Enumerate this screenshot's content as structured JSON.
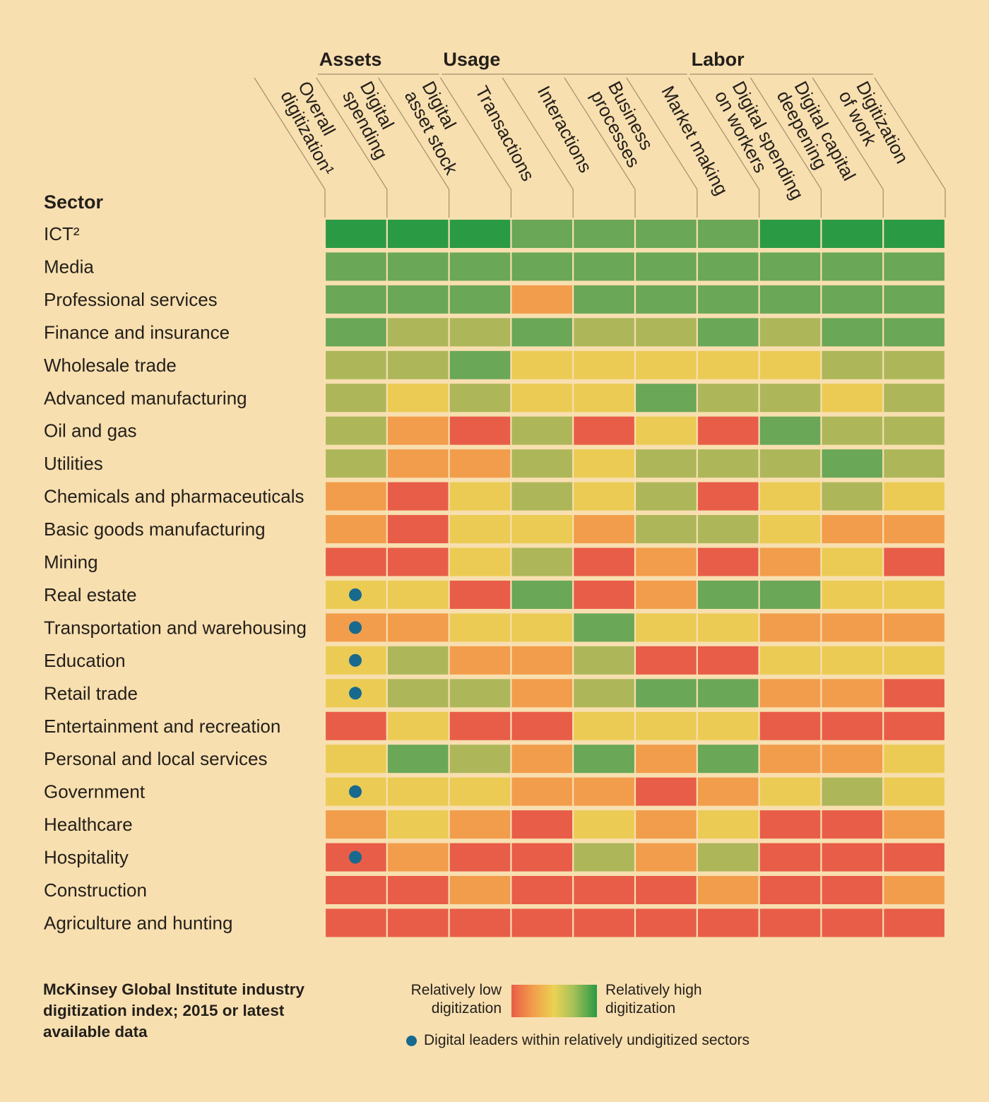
{
  "chart_data": {
    "type": "heatmap",
    "title": "McKinsey Global Institute industry digitization index; 2015 or latest available data",
    "row_header": "Sector",
    "groups": [
      {
        "label": "Assets",
        "columns": [
          1,
          2
        ]
      },
      {
        "label": "Usage",
        "columns": [
          3,
          4,
          5,
          6
        ]
      },
      {
        "label": "Labor",
        "columns": [
          7,
          8,
          9
        ]
      }
    ],
    "columns": [
      [
        "Overall",
        "digitization¹"
      ],
      [
        "Digital",
        "spending"
      ],
      [
        "Digital",
        "asset stock"
      ],
      [
        "Transactions"
      ],
      [
        "Interactions"
      ],
      [
        "Business",
        "processes"
      ],
      [
        "Market making"
      ],
      [
        "Digital spending",
        "on workers"
      ],
      [
        "Digital capital",
        "deepening"
      ],
      [
        "Digitization",
        "of work"
      ]
    ],
    "scale": {
      "levels": [
        0,
        1,
        2,
        3,
        4,
        5
      ],
      "level_meaning": "0 = relatively low digitization, 5 = relatively high digitization",
      "colors": [
        "#e85d48",
        "#f29d4b",
        "#ebcb54",
        "#adb75a",
        "#6aa757",
        "#2a9a45"
      ]
    },
    "rows": [
      {
        "sector": "ICT²",
        "values": [
          5,
          5,
          5,
          4,
          4,
          4,
          4,
          5,
          5,
          5
        ],
        "leader_dot": false
      },
      {
        "sector": "Media",
        "values": [
          4,
          4,
          4,
          4,
          4,
          4,
          4,
          4,
          4,
          4
        ],
        "leader_dot": false
      },
      {
        "sector": "Professional services",
        "values": [
          4,
          4,
          4,
          1,
          4,
          4,
          4,
          4,
          4,
          4
        ],
        "leader_dot": false
      },
      {
        "sector": "Finance and insurance",
        "values": [
          4,
          3,
          3,
          4,
          3,
          3,
          4,
          3,
          4,
          4
        ],
        "leader_dot": false
      },
      {
        "sector": "Wholesale trade",
        "values": [
          3,
          3,
          4,
          2,
          2,
          2,
          2,
          2,
          3,
          3
        ],
        "leader_dot": false
      },
      {
        "sector": "Advanced manufacturing",
        "values": [
          3,
          2,
          3,
          2,
          2,
          4,
          3,
          3,
          2,
          3
        ],
        "leader_dot": false
      },
      {
        "sector": "Oil and gas",
        "values": [
          3,
          1,
          0,
          3,
          0,
          2,
          0,
          4,
          3,
          3
        ],
        "leader_dot": false
      },
      {
        "sector": "Utilities",
        "values": [
          3,
          1,
          1,
          3,
          2,
          3,
          3,
          3,
          4,
          3
        ],
        "leader_dot": false
      },
      {
        "sector": "Chemicals and pharmaceuticals",
        "values": [
          1,
          0,
          2,
          3,
          2,
          3,
          0,
          2,
          3,
          2
        ],
        "leader_dot": false
      },
      {
        "sector": "Basic goods manufacturing",
        "values": [
          1,
          0,
          2,
          2,
          1,
          3,
          3,
          2,
          1,
          1
        ],
        "leader_dot": false
      },
      {
        "sector": "Mining",
        "values": [
          0,
          0,
          2,
          3,
          0,
          1,
          0,
          1,
          2,
          0
        ],
        "leader_dot": false
      },
      {
        "sector": "Real estate",
        "values": [
          2,
          2,
          0,
          4,
          0,
          1,
          4,
          4,
          2,
          2
        ],
        "leader_dot": true
      },
      {
        "sector": "Transportation and warehousing",
        "values": [
          1,
          1,
          2,
          2,
          4,
          2,
          2,
          1,
          1,
          1
        ],
        "leader_dot": true
      },
      {
        "sector": "Education",
        "values": [
          2,
          3,
          1,
          1,
          3,
          0,
          0,
          2,
          2,
          2
        ],
        "leader_dot": true
      },
      {
        "sector": "Retail trade",
        "values": [
          2,
          3,
          3,
          1,
          3,
          4,
          4,
          1,
          1,
          0
        ],
        "leader_dot": true
      },
      {
        "sector": "Entertainment and recreation",
        "values": [
          0,
          2,
          0,
          0,
          2,
          2,
          2,
          0,
          0,
          0
        ],
        "leader_dot": false
      },
      {
        "sector": "Personal and local services",
        "values": [
          2,
          4,
          3,
          1,
          4,
          1,
          4,
          1,
          1,
          2
        ],
        "leader_dot": false
      },
      {
        "sector": "Government",
        "values": [
          2,
          2,
          2,
          1,
          1,
          0,
          1,
          2,
          3,
          2
        ],
        "leader_dot": true
      },
      {
        "sector": "Healthcare",
        "values": [
          1,
          2,
          1,
          0,
          2,
          1,
          2,
          0,
          0,
          1
        ],
        "leader_dot": false
      },
      {
        "sector": "Hospitality",
        "values": [
          0,
          1,
          0,
          0,
          3,
          1,
          3,
          0,
          0,
          0
        ],
        "leader_dot": true
      },
      {
        "sector": "Construction",
        "values": [
          0,
          0,
          1,
          0,
          0,
          0,
          1,
          0,
          0,
          1
        ],
        "leader_dot": false
      },
      {
        "sector": "Agriculture and hunting",
        "values": [
          0,
          0,
          0,
          0,
          0,
          0,
          0,
          0,
          0,
          0
        ],
        "leader_dot": false
      }
    ],
    "dot_color": "#17698e",
    "legend": {
      "low": "Relatively low digitization",
      "high": "Relatively high digitization",
      "dot": "Digital leaders within relatively undigitized sectors"
    }
  },
  "footer": {
    "title": "McKinsey Global Institute industry digitization index; 2015 or latest available data"
  },
  "legend": {
    "low_label": "Relatively low digitization",
    "high_label": "Relatively high digitization",
    "dot_label": "Digital leaders within relatively undigitized sectors"
  }
}
